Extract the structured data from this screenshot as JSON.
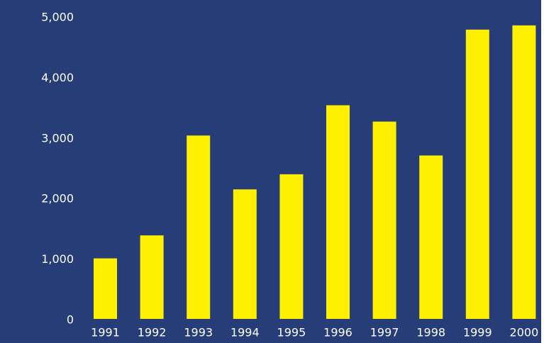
{
  "chart_data": {
    "type": "bar",
    "categories": [
      "1991",
      "1992",
      "1993",
      "1994",
      "1995",
      "1996",
      "1997",
      "1998",
      "1999",
      "2000"
    ],
    "values": [
      1000,
      1380,
      3030,
      2140,
      2390,
      3530,
      3260,
      2700,
      4780,
      4850
    ],
    "color": "#ffef00",
    "ylim": [
      0,
      5000
    ],
    "yticks": [
      0,
      {
        "value": 1000,
        "label": "1,000"
      },
      {
        "value": 2000,
        "label": "2,000"
      },
      {
        "value": 3000,
        "label": "3,000"
      },
      {
        "value": 4000,
        "label": "4,000"
      },
      {
        "value": 5000,
        "label": "5,000"
      }
    ],
    "grid": false
  }
}
